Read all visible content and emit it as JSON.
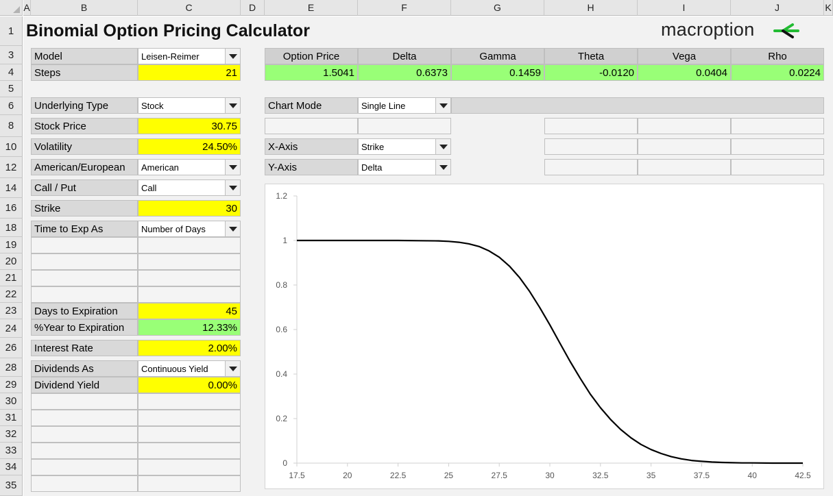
{
  "columns": [
    "A",
    "B",
    "C",
    "D",
    "E",
    "F",
    "G",
    "H",
    "I",
    "J",
    "K"
  ],
  "rows": [
    "1",
    "3",
    "4",
    "5",
    "6",
    "8",
    "10",
    "12",
    "14",
    "16",
    "18",
    "19",
    "20",
    "21",
    "22",
    "23",
    "24",
    "26",
    "28",
    "29",
    "30",
    "31",
    "32",
    "33",
    "34",
    "35"
  ],
  "title": "Binomial Option Pricing Calculator",
  "logo": {
    "text": "macroption",
    "accent": "#22bb33"
  },
  "inputs": {
    "model": {
      "label": "Model",
      "value": "Leisen-Reimer"
    },
    "steps": {
      "label": "Steps",
      "value": "21"
    },
    "underlying_type": {
      "label": "Underlying Type",
      "value": "Stock"
    },
    "stock_price": {
      "label": "Stock Price",
      "value": "30.75"
    },
    "volatility": {
      "label": "Volatility",
      "value": "24.50%"
    },
    "american_european": {
      "label": "American/European",
      "value": "American"
    },
    "call_put": {
      "label": "Call / Put",
      "value": "Call"
    },
    "strike": {
      "label": "Strike",
      "value": "30"
    },
    "time_to_exp_as": {
      "label": "Time to Exp As",
      "value": "Number of Days"
    },
    "days_to_expiration": {
      "label": "Days to Expiration",
      "value": "45"
    },
    "year_to_expiration": {
      "label": "%Year to Expiration",
      "value": "12.33%"
    },
    "interest_rate": {
      "label": "Interest Rate",
      "value": "2.00%"
    },
    "dividends_as": {
      "label": "Dividends As",
      "value": "Continuous Yield"
    },
    "dividend_yield": {
      "label": "Dividend Yield",
      "value": "0.00%"
    }
  },
  "results": {
    "headers": [
      "Option Price",
      "Delta",
      "Gamma",
      "Theta",
      "Vega",
      "Rho"
    ],
    "values": [
      "1.5041",
      "0.6373",
      "0.1459",
      "-0.0120",
      "0.0404",
      "0.0224"
    ]
  },
  "chart_settings": {
    "mode": {
      "label": "Chart Mode",
      "value": "Single Line"
    },
    "x_axis": {
      "label": "X-Axis",
      "value": "Strike"
    },
    "y_axis": {
      "label": "Y-Axis",
      "value": "Delta"
    }
  },
  "colors": {
    "input_yellow": "#ffff00",
    "output_green": "#99ff77",
    "label_gray": "#d9d9d9"
  },
  "chart_data": {
    "type": "line",
    "title": "",
    "xlabel": "",
    "ylabel": "",
    "xlim": [
      17.5,
      42.5
    ],
    "ylim": [
      0,
      1.2
    ],
    "xticks": [
      "17.5",
      "20",
      "22.5",
      "25",
      "27.5",
      "30",
      "32.5",
      "35",
      "37.5",
      "40",
      "42.5"
    ],
    "yticks": [
      "0",
      "0.2",
      "0.4",
      "0.6",
      "0.8",
      "1",
      "1.2"
    ],
    "grid": false,
    "legend": "none",
    "series": [
      {
        "color": "#000000",
        "x": [
          17.5,
          18.5,
          19.5,
          20.5,
          21.5,
          22.5,
          23.5,
          24.5,
          25,
          25.5,
          26,
          26.5,
          27,
          27.5,
          28,
          28.5,
          29,
          29.5,
          30,
          30.5,
          31,
          31.5,
          32,
          32.5,
          33,
          33.5,
          34,
          34.5,
          35,
          35.5,
          36,
          36.5,
          37,
          37.5,
          38,
          38.5,
          39,
          39.5,
          40,
          41,
          42.5
        ],
        "y": [
          1,
          1,
          1,
          1,
          1,
          1,
          0.999,
          0.998,
          0.996,
          0.992,
          0.985,
          0.973,
          0.953,
          0.925,
          0.885,
          0.834,
          0.771,
          0.699,
          0.621,
          0.538,
          0.457,
          0.381,
          0.31,
          0.249,
          0.196,
          0.151,
          0.114,
          0.084,
          0.061,
          0.043,
          0.029,
          0.019,
          0.012,
          0.008,
          0.005,
          0.003,
          0.002,
          0.001,
          0.001,
          0,
          0
        ]
      }
    ]
  }
}
